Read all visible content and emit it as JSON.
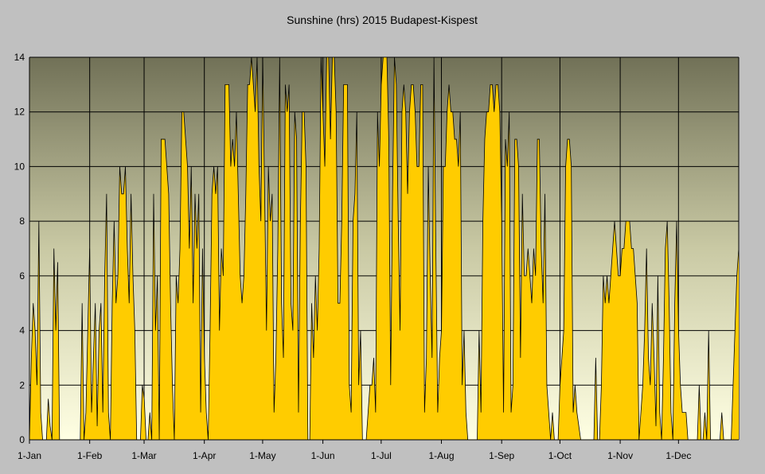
{
  "chart_data": {
    "type": "area",
    "title": "Sunshine (hrs) 2015 Budapest-Kispest",
    "xlabel": "",
    "ylabel": "",
    "ylim": [
      0,
      14
    ],
    "y_ticks": [
      "0",
      "2",
      "4",
      "6",
      "8",
      "10",
      "12",
      "14"
    ],
    "x_ticks": [
      "1-Jan",
      "1-Feb",
      "1-Mar",
      "1-Apr",
      "1-May",
      "1-Jun",
      "1-Jul",
      "1-Aug",
      "1-Sep",
      "1-Oct",
      "1-Nov",
      "1-Dec"
    ],
    "x_tick_days": [
      0,
      31,
      59,
      90,
      120,
      151,
      181,
      212,
      243,
      273,
      304,
      334
    ],
    "grid": true,
    "legend": "none",
    "colors": {
      "fill": "#ffcc00",
      "stroke": "#000000",
      "background": "#c0c0c0",
      "grid": "#000000"
    },
    "x_start": "2015-01-01",
    "x_end": "2015-12-31",
    "series": [
      {
        "values": [
          0.0,
          3.0,
          5.0,
          4.0,
          2.0,
          8.0,
          1.0,
          0.0,
          0.0,
          0.0,
          1.5,
          0.5,
          0.0,
          7.0,
          4.0,
          6.5,
          0.0,
          0.0,
          0.0,
          0.0,
          0.0,
          0.0,
          0.0,
          0.0,
          0.0,
          0.0,
          0.0,
          0.0,
          5.0,
          0.0,
          1.0,
          4.0,
          7.0,
          1.0,
          3.0,
          5.0,
          0.5,
          4.0,
          5.0,
          1.0,
          6.0,
          9.0,
          1.0,
          0.0,
          5.0,
          8.0,
          5.0,
          6.0,
          10.0,
          9.0,
          9.0,
          10.0,
          7.0,
          5.0,
          9.0,
          6.0,
          4.0,
          0.0,
          0.0,
          0.0,
          2.0,
          1.5,
          0.0,
          0.0,
          1.0,
          0.0,
          9.0,
          4.0,
          6.0,
          0.0,
          11.0,
          11.0,
          11.0,
          10.0,
          9.0,
          5.0,
          2.0,
          0.0,
          6.0,
          5.0,
          7.0,
          12.0,
          12.0,
          11.0,
          10.0,
          7.0,
          10.0,
          5.0,
          9.0,
          7.0,
          9.0,
          1.0,
          7.0,
          3.0,
          1.0,
          0.0,
          4.0,
          9.0,
          10.0,
          9.0,
          10.0,
          4.0,
          7.0,
          6.0,
          13.0,
          13.0,
          13.0,
          10.0,
          11.0,
          10.0,
          12.0,
          9.0,
          6.0,
          5.0,
          6.0,
          9.0,
          13.0,
          13.0,
          14.0,
          13.0,
          12.0,
          14.0,
          10.0,
          8.0,
          14.0,
          9.0,
          4.0,
          10.0,
          8.0,
          9.0,
          1.0,
          3.0,
          7.0,
          14.0,
          5.0,
          3.0,
          13.0,
          12.0,
          13.0,
          5.0,
          4.0,
          12.0,
          11.0,
          1.0,
          8.0,
          12.0,
          12.0,
          10.0,
          0.0,
          0.0,
          5.0,
          3.0,
          6.0,
          4.0,
          7.0,
          14.0,
          12.0,
          10.0,
          14.0,
          14.0,
          11.0,
          14.0,
          14.0,
          12.0,
          5.0,
          5.0,
          8.0,
          13.0,
          13.0,
          13.0,
          2.0,
          1.0,
          8.0,
          9.0,
          12.0,
          2.0,
          4.0,
          0.0,
          0.0,
          0.0,
          1.0,
          2.0,
          2.0,
          3.0,
          1.0,
          12.0,
          10.0,
          13.0,
          14.0,
          14.0,
          14.0,
          11.0,
          2.0,
          9.0,
          14.0,
          13.0,
          8.0,
          4.0,
          12.0,
          13.0,
          12.0,
          9.0,
          12.0,
          13.0,
          13.0,
          12.0,
          10.0,
          10.0,
          13.0,
          13.0,
          1.0,
          3.0,
          10.0,
          6.0,
          3.0,
          14.0,
          7.0,
          1.0,
          3.0,
          4.0,
          10.0,
          10.0,
          12.0,
          13.0,
          12.0,
          12.0,
          11.0,
          11.0,
          10.0,
          12.0,
          2.0,
          4.0,
          1.0,
          0.0,
          0.0,
          0.0,
          0.0,
          0.0,
          0.0,
          4.0,
          1.0,
          8.0,
          11.0,
          12.0,
          12.0,
          13.0,
          13.0,
          12.0,
          13.0,
          13.0,
          12.0,
          8.0,
          1.0,
          11.0,
          10.0,
          12.0,
          1.0,
          2.0,
          11.0,
          11.0,
          10.0,
          3.0,
          9.0,
          6.0,
          6.0,
          7.0,
          6.0,
          5.0,
          7.0,
          6.0,
          11.0,
          11.0,
          7.0,
          5.0,
          9.0,
          2.0,
          1.0,
          0.0,
          1.0,
          0.0,
          0.0,
          0.0,
          2.0,
          3.0,
          4.0,
          10.0,
          11.0,
          11.0,
          10.0,
          1.0,
          2.0,
          1.0,
          0.5,
          0.0,
          0.0,
          0.0,
          0.0,
          0.0,
          0.0,
          0.0,
          0.0,
          3.0,
          0.0,
          0.0,
          2.0,
          6.0,
          5.0,
          6.0,
          5.0,
          6.0,
          7.0,
          8.0,
          7.0,
          6.0,
          6.0,
          7.0,
          7.0,
          8.0,
          8.0,
          8.0,
          7.0,
          7.0,
          6.0,
          5.0,
          0.0,
          1.0,
          2.0,
          4.0,
          7.0,
          3.0,
          2.0,
          5.0,
          3.0,
          0.5,
          6.0,
          1.0,
          0.0,
          3.0,
          7.0,
          8.0,
          5.0,
          1.0,
          0.0,
          5.0,
          8.0,
          4.0,
          2.0,
          1.0,
          1.0,
          1.0,
          0.0,
          0.0,
          0.0,
          0.0,
          0.0,
          0.0,
          2.0,
          0.0,
          0.0,
          1.0,
          0.0,
          4.0,
          0.0,
          0.0,
          0.0,
          0.0,
          0.0,
          0.0,
          1.0,
          0.0,
          0.0,
          0.0,
          0.0,
          0.0,
          2.0,
          4.0,
          6.0,
          7.0
        ]
      }
    ]
  }
}
